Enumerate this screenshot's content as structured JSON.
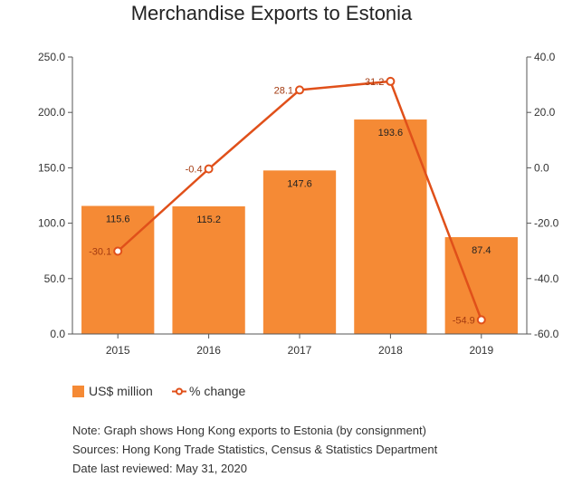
{
  "colors": {
    "bar": "#f58a35",
    "line": "#e0501a",
    "axis": "#555555"
  },
  "legend": {
    "bar_label": "US$ million",
    "line_label": "% change"
  },
  "notes": {
    "note": "Note: Graph shows Hong Kong exports to Estonia (by consignment)",
    "sources": "Sources: Hong Kong Trade Statistics, Census & Statistics Department",
    "reviewed": "Date last reviewed: May 31, 2020"
  },
  "chart_data": {
    "type": "bar",
    "title": "Merchandise Exports to Estonia",
    "categories": [
      "2015",
      "2016",
      "2017",
      "2018",
      "2019"
    ],
    "series": [
      {
        "name": "US$ million",
        "type": "bar",
        "axis": "left",
        "values": [
          115.6,
          115.2,
          147.6,
          193.6,
          87.4
        ]
      },
      {
        "name": "% change",
        "type": "line",
        "axis": "right",
        "values": [
          -30.1,
          -0.4,
          28.1,
          31.2,
          -54.9
        ]
      }
    ],
    "left_axis": {
      "min": 0,
      "max": 250,
      "ticks": [
        "0.0",
        "50.0",
        "100.0",
        "150.0",
        "200.0",
        "250.0"
      ]
    },
    "right_axis": {
      "min": -60,
      "max": 40,
      "ticks": [
        "-60.0",
        "-40.0",
        "-20.0",
        "0.0",
        "20.0",
        "40.0"
      ]
    },
    "grid": false,
    "legend_position": "bottom-left"
  }
}
